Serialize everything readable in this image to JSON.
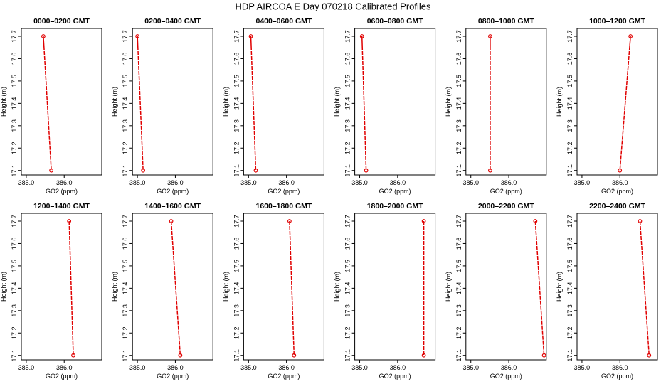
{
  "title": "HDP AIRCOA E  Day 070218  Calibrated Profiles",
  "chart_data": [
    {
      "type": "line",
      "title": "0000–0200 GMT",
      "xlabel": "GO2 (ppm)",
      "ylabel": "Height (m)",
      "x": [
        385.45,
        385.66
      ],
      "values": [
        17.7,
        17.1
      ],
      "color": "#e00000",
      "xlim": [
        384.87,
        386.99
      ],
      "xticks": [
        {
          "value": 385,
          "label": "385.0"
        },
        {
          "value": 386,
          "label": "386.0"
        }
      ],
      "ylim": [
        17.08,
        17.735
      ],
      "yticks": [
        17.1,
        17.2,
        17.3,
        17.4,
        17.5,
        17.6,
        17.7
      ]
    },
    {
      "type": "line",
      "title": "0200–0400 GMT",
      "xlabel": "GO2 (ppm)",
      "ylabel": "Height (m)",
      "x": [
        385.0,
        385.15
      ],
      "values": [
        17.7,
        17.1
      ],
      "color": "#e00000",
      "xlim": [
        384.87,
        386.99
      ],
      "xticks": [
        {
          "value": 385,
          "label": "385.0"
        },
        {
          "value": 386,
          "label": "386.0"
        }
      ],
      "ylim": [
        17.08,
        17.735
      ],
      "yticks": [
        17.1,
        17.2,
        17.3,
        17.4,
        17.5,
        17.6,
        17.7
      ]
    },
    {
      "type": "line",
      "title": "0400–0600 GMT",
      "xlabel": "GO2 (ppm)",
      "ylabel": "Height (m)",
      "x": [
        385.06,
        385.19
      ],
      "values": [
        17.7,
        17.1
      ],
      "color": "#e00000",
      "xlim": [
        384.87,
        386.99
      ],
      "xticks": [
        {
          "value": 385,
          "label": "385.0"
        },
        {
          "value": 386,
          "label": "386.0"
        }
      ],
      "ylim": [
        17.08,
        17.735
      ],
      "yticks": [
        17.1,
        17.2,
        17.3,
        17.4,
        17.5,
        17.6,
        17.7
      ]
    },
    {
      "type": "line",
      "title": "0600–0800 GMT",
      "xlabel": "GO2 (ppm)",
      "ylabel": "Height (m)",
      "x": [
        385.06,
        385.17
      ],
      "values": [
        17.7,
        17.1
      ],
      "color": "#e00000",
      "xlim": [
        384.87,
        386.99
      ],
      "xticks": [
        {
          "value": 385,
          "label": "385.0"
        },
        {
          "value": 386,
          "label": "386.0"
        }
      ],
      "ylim": [
        17.08,
        17.735
      ],
      "yticks": [
        17.1,
        17.2,
        17.3,
        17.4,
        17.5,
        17.6,
        17.7
      ]
    },
    {
      "type": "line",
      "title": "0800–1000 GMT",
      "xlabel": "GO2 (ppm)",
      "ylabel": "Height (m)",
      "x": [
        385.51,
        385.51
      ],
      "values": [
        17.7,
        17.1
      ],
      "color": "#e00000",
      "xlim": [
        384.87,
        386.99
      ],
      "xticks": [
        {
          "value": 385,
          "label": "385.0"
        },
        {
          "value": 386,
          "label": "386.0"
        }
      ],
      "ylim": [
        17.08,
        17.735
      ],
      "yticks": [
        17.1,
        17.2,
        17.3,
        17.4,
        17.5,
        17.6,
        17.7
      ]
    },
    {
      "type": "line",
      "title": "1000–1200 GMT",
      "xlabel": "GO2 (ppm)",
      "ylabel": "Height (m)",
      "x": [
        386.28,
        386.0
      ],
      "values": [
        17.7,
        17.1
      ],
      "color": "#e00000",
      "xlim": [
        384.87,
        386.99
      ],
      "xticks": [
        {
          "value": 385,
          "label": "385.0"
        },
        {
          "value": 386,
          "label": "386.0"
        }
      ],
      "ylim": [
        17.08,
        17.735
      ],
      "yticks": [
        17.1,
        17.2,
        17.3,
        17.4,
        17.5,
        17.6,
        17.7
      ]
    },
    {
      "type": "line",
      "title": "1200–1400 GMT",
      "xlabel": "GO2 (ppm)",
      "ylabel": "Height (m)",
      "x": [
        386.13,
        386.24
      ],
      "values": [
        17.7,
        17.1
      ],
      "color": "#e00000",
      "xlim": [
        384.87,
        386.99
      ],
      "xticks": [
        {
          "value": 385,
          "label": "385.0"
        },
        {
          "value": 386,
          "label": "386.0"
        }
      ],
      "ylim": [
        17.08,
        17.735
      ],
      "yticks": [
        17.1,
        17.2,
        17.3,
        17.4,
        17.5,
        17.6,
        17.7
      ]
    },
    {
      "type": "line",
      "title": "1400–1600 GMT",
      "xlabel": "GO2 (ppm)",
      "ylabel": "Height (m)",
      "x": [
        385.89,
        386.13
      ],
      "values": [
        17.7,
        17.1
      ],
      "color": "#e00000",
      "xlim": [
        384.87,
        386.99
      ],
      "xticks": [
        {
          "value": 385,
          "label": "385.0"
        },
        {
          "value": 386,
          "label": "386.0"
        }
      ],
      "ylim": [
        17.08,
        17.735
      ],
      "yticks": [
        17.1,
        17.2,
        17.3,
        17.4,
        17.5,
        17.6,
        17.7
      ]
    },
    {
      "type": "line",
      "title": "1600–1800 GMT",
      "xlabel": "GO2 (ppm)",
      "ylabel": "Height (m)",
      "x": [
        386.08,
        386.2
      ],
      "values": [
        17.7,
        17.1
      ],
      "color": "#e00000",
      "xlim": [
        384.87,
        386.99
      ],
      "xticks": [
        {
          "value": 385,
          "label": "385.0"
        },
        {
          "value": 386,
          "label": "386.0"
        }
      ],
      "ylim": [
        17.08,
        17.735
      ],
      "yticks": [
        17.1,
        17.2,
        17.3,
        17.4,
        17.5,
        17.6,
        17.7
      ]
    },
    {
      "type": "line",
      "title": "1800–2000 GMT",
      "xlabel": "GO2 (ppm)",
      "ylabel": "Height (m)",
      "x": [
        386.69,
        386.69
      ],
      "values": [
        17.7,
        17.1
      ],
      "color": "#e00000",
      "xlim": [
        384.87,
        386.99
      ],
      "xticks": [
        {
          "value": 385,
          "label": "385.0"
        },
        {
          "value": 386,
          "label": "386.0"
        }
      ],
      "ylim": [
        17.08,
        17.735
      ],
      "yticks": [
        17.1,
        17.2,
        17.3,
        17.4,
        17.5,
        17.6,
        17.7
      ]
    },
    {
      "type": "line",
      "title": "2000–2200 GMT",
      "xlabel": "GO2 (ppm)",
      "ylabel": "Height (m)",
      "x": [
        386.7,
        386.93
      ],
      "values": [
        17.7,
        17.1
      ],
      "color": "#e00000",
      "xlim": [
        384.87,
        386.99
      ],
      "xticks": [
        {
          "value": 385,
          "label": "385.0"
        },
        {
          "value": 386,
          "label": "386.0"
        }
      ],
      "ylim": [
        17.08,
        17.735
      ],
      "yticks": [
        17.1,
        17.2,
        17.3,
        17.4,
        17.5,
        17.6,
        17.7
      ]
    },
    {
      "type": "line",
      "title": "2200–2400 GMT",
      "xlabel": "GO2 (ppm)",
      "ylabel": "Height (m)",
      "x": [
        386.53,
        386.77
      ],
      "values": [
        17.7,
        17.1
      ],
      "color": "#e00000",
      "xlim": [
        384.87,
        386.99
      ],
      "xticks": [
        {
          "value": 385,
          "label": "385.0"
        },
        {
          "value": 386,
          "label": "386.0"
        }
      ],
      "ylim": [
        17.08,
        17.735
      ],
      "yticks": [
        17.1,
        17.2,
        17.3,
        17.4,
        17.5,
        17.6,
        17.7
      ]
    }
  ]
}
